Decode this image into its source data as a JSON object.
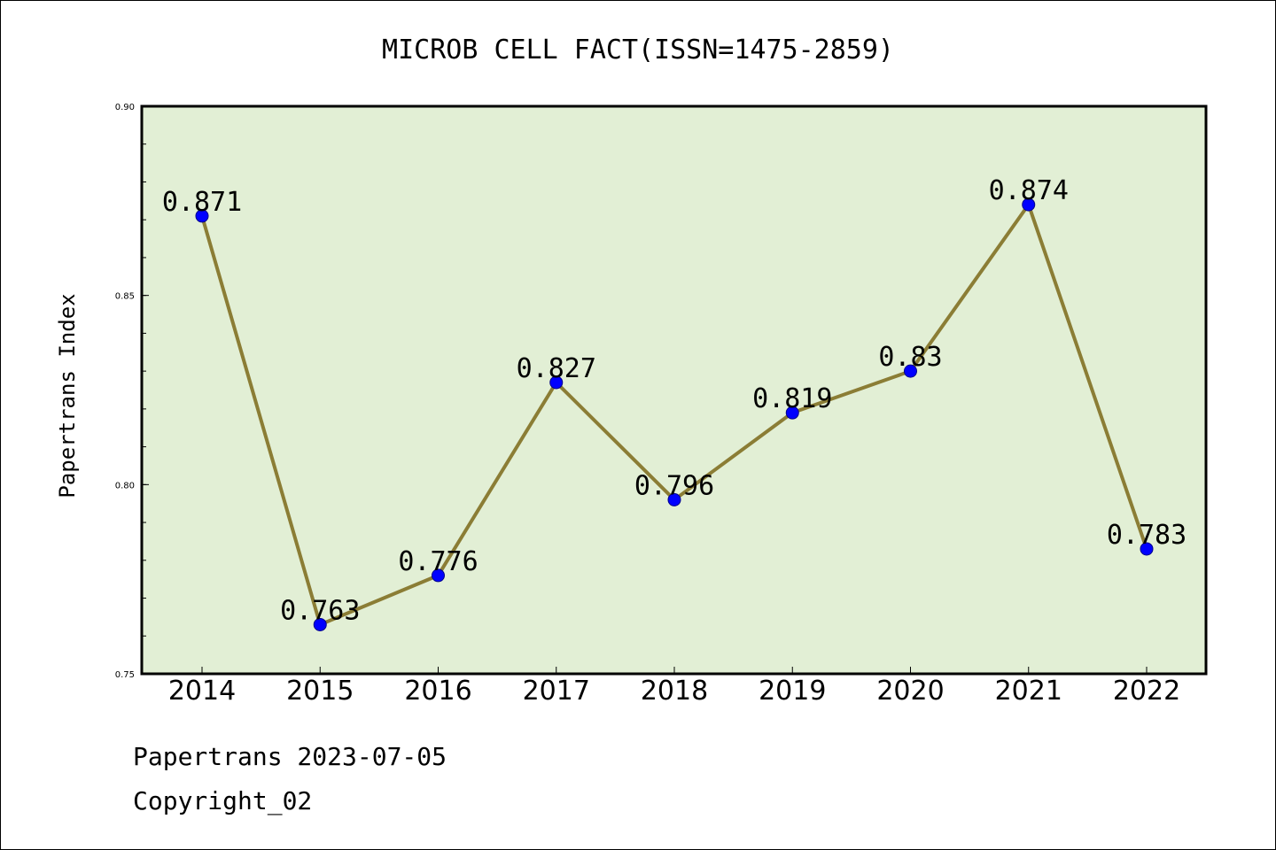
{
  "chart_data": {
    "type": "line",
    "title": "MICROB CELL FACT(ISSN=1475-2859)",
    "xlabel": "",
    "ylabel": "Papertrans Index",
    "categories": [
      "2014",
      "2015",
      "2016",
      "2017",
      "2018",
      "2019",
      "2020",
      "2021",
      "2022"
    ],
    "series": [
      {
        "values": [
          0.871,
          0.763,
          0.776,
          0.827,
          0.796,
          0.819,
          0.83,
          0.874,
          0.783
        ],
        "data_labels": [
          "0.871",
          "0.763",
          "0.776",
          "0.827",
          "0.796",
          "0.819",
          "0.83",
          "0.874",
          "0.783"
        ]
      }
    ],
    "ylim": [
      0.75,
      0.9
    ],
    "yticks": [
      "0.75",
      "0.80",
      "0.85",
      "0.90"
    ],
    "grid": false,
    "colors": {
      "plot_background": "#e2efd5",
      "line": "#8b7d35",
      "marker": "#0000ff"
    }
  },
  "footer": {
    "line1": "Papertrans 2023-07-05",
    "line2": "Copyright_02"
  }
}
